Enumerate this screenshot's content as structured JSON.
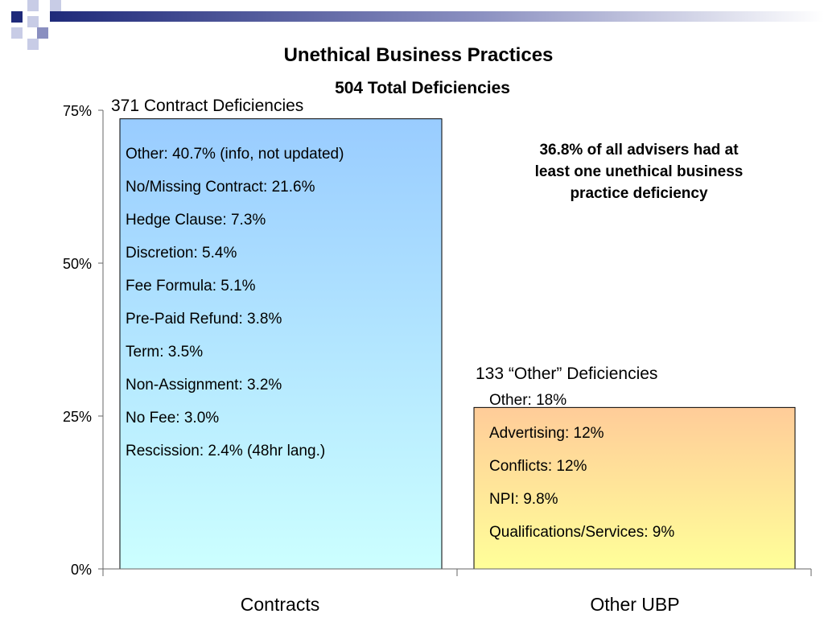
{
  "chart_data": {
    "type": "bar",
    "title": "Unethical Business Practices",
    "subtitle": "504 Total Deficiencies",
    "categories": [
      "Contracts",
      "Other UBP"
    ],
    "values": [
      73.6,
      26.4
    ],
    "ylim": [
      0,
      75
    ],
    "yticks": [
      "0%",
      "25%",
      "50%",
      "75%"
    ],
    "ytick_values": [
      0,
      25,
      50,
      75
    ],
    "grid": false,
    "bar_labels": [
      "371 Contract Deficiencies",
      "133 “Other” Deficiencies"
    ],
    "contracts_breakdown": [
      "Other: 40.7% (info, not updated)",
      "No/Missing Contract: 21.6%",
      "Hedge Clause: 7.3%",
      "Discretion: 5.4%",
      "Fee Formula: 5.1%",
      "Pre-Paid Refund: 3.8%",
      "Term: 3.5%",
      "Non-Assignment: 3.2%",
      "No Fee: 3.0%",
      "Rescission:  2.4% (48hr lang.)"
    ],
    "other_breakdown": [
      "Other: 18%",
      "Advertising: 12%",
      "Conflicts: 12%",
      "NPI: 9.8%",
      "Qualifications/Services: 9%"
    ],
    "annotation": "36.8% of all advisers had at least one unethical business practice deficiency",
    "colors": {
      "contracts_top": "#99ccff",
      "contracts_bottom": "#ccffff",
      "other_top": "#ffcc99",
      "other_bottom": "#ffff99",
      "banner_dark": "#1f2a7a"
    }
  }
}
